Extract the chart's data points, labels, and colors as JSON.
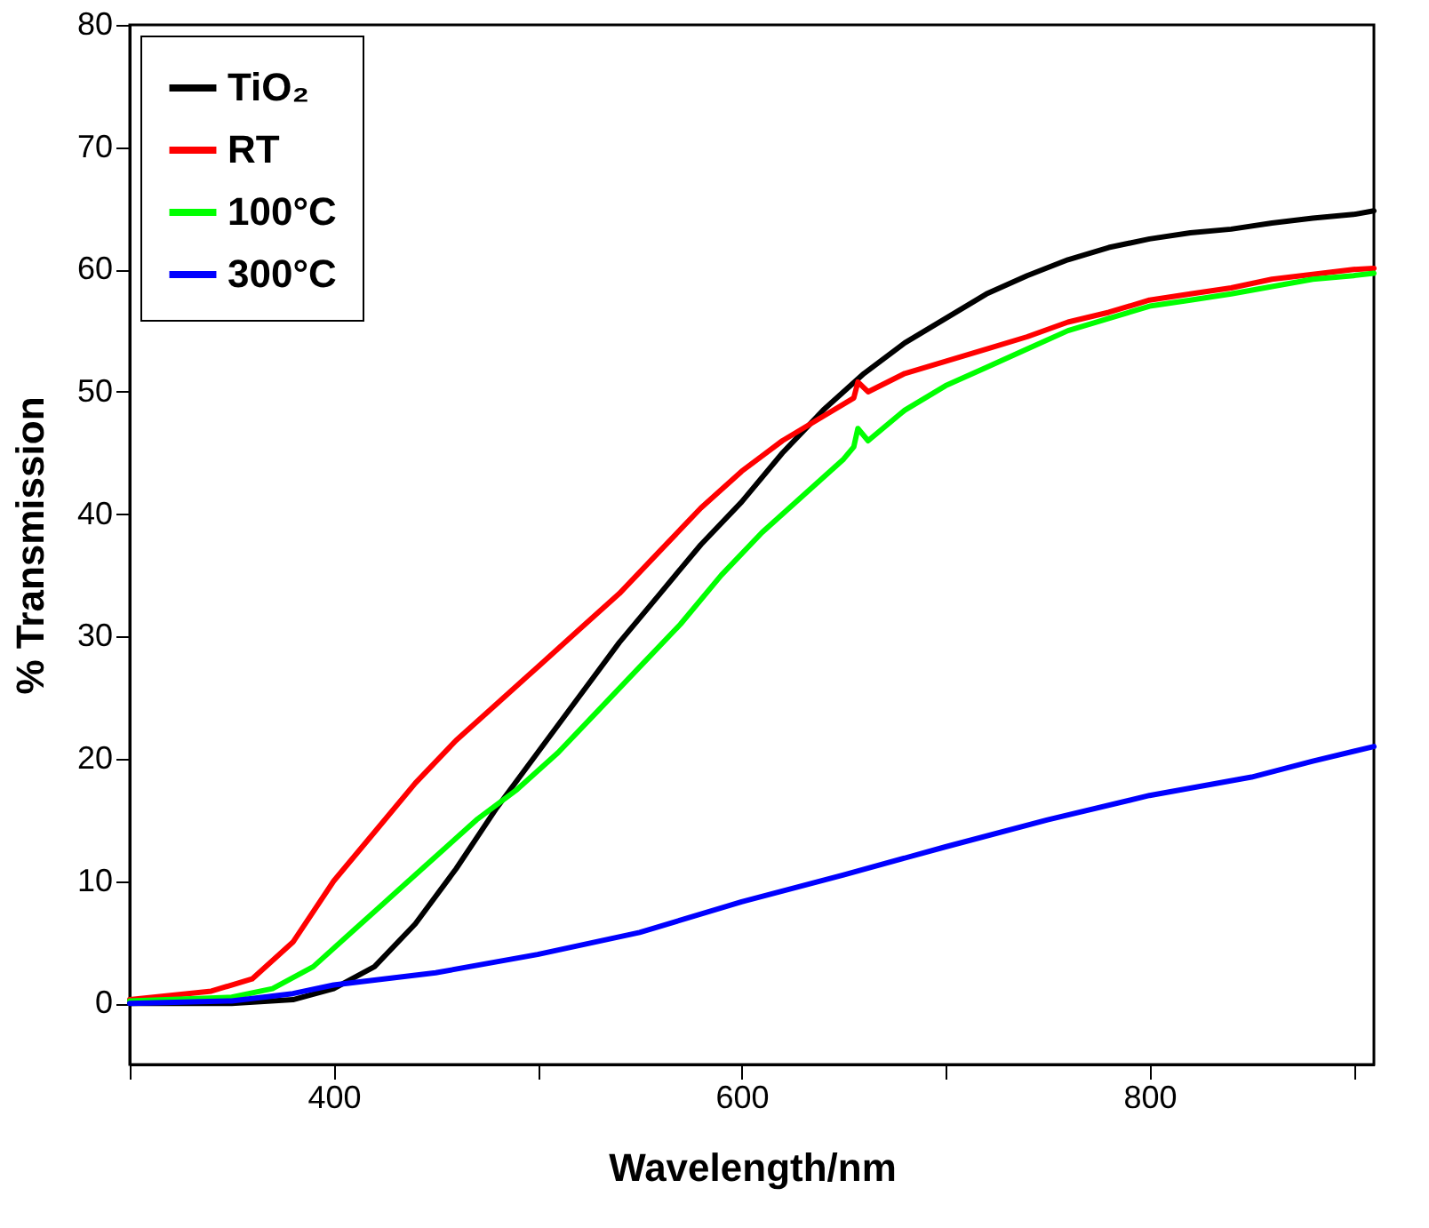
{
  "chart_data": {
    "type": "line",
    "xlabel": "Wavelength/nm",
    "ylabel": "% Transmission",
    "xlim": [
      300,
      910
    ],
    "ylim": [
      -5,
      80
    ],
    "xticks": [
      {
        "value": 300,
        "label": null
      },
      400,
      {
        "value": 500,
        "label": null
      },
      600,
      {
        "value": 700,
        "label": null
      },
      800,
      {
        "value": 900,
        "label": null
      }
    ],
    "yticks": [
      0,
      10,
      20,
      30,
      40,
      50,
      60,
      70,
      80
    ],
    "grid": false,
    "legend": "top left",
    "line_style": "solid",
    "marker": "none",
    "series": [
      {
        "name": "TiO₂",
        "color": "#000000",
        "x": [
          300,
          350,
          380,
          400,
          420,
          440,
          460,
          480,
          500,
          520,
          540,
          560,
          580,
          600,
          620,
          640,
          660,
          680,
          700,
          720,
          740,
          760,
          780,
          800,
          820,
          840,
          860,
          880,
          900,
          910
        ],
        "values": [
          0,
          0,
          0.3,
          1.2,
          3,
          6.5,
          11,
          16,
          20.5,
          25,
          29.5,
          33.5,
          37.5,
          41,
          45,
          48.5,
          51.5,
          54,
          56,
          58,
          59.5,
          60.8,
          61.8,
          62.5,
          63,
          63.3,
          63.8,
          64.2,
          64.5,
          64.8
        ]
      },
      {
        "name": "RT",
        "color": "#ff0000",
        "x": [
          300,
          340,
          360,
          380,
          400,
          420,
          440,
          460,
          480,
          500,
          520,
          540,
          560,
          580,
          600,
          620,
          640,
          655,
          657,
          662,
          680,
          700,
          720,
          740,
          760,
          780,
          800,
          820,
          840,
          860,
          880,
          900,
          910
        ],
        "values": [
          0.3,
          1,
          2,
          5,
          10,
          14,
          18,
          21.5,
          24.5,
          27.5,
          30.5,
          33.5,
          37,
          40.5,
          43.5,
          46,
          48,
          49.5,
          50.8,
          50,
          51.5,
          52.5,
          53.5,
          54.5,
          55.7,
          56.5,
          57.5,
          58,
          58.5,
          59.2,
          59.6,
          60,
          60.1
        ]
      },
      {
        "name": "100°C",
        "color": "#00ff00",
        "x": [
          300,
          350,
          370,
          390,
          410,
          430,
          450,
          470,
          490,
          510,
          530,
          550,
          570,
          590,
          610,
          630,
          650,
          655,
          657,
          662,
          680,
          700,
          720,
          740,
          760,
          780,
          800,
          820,
          840,
          860,
          880,
          900,
          910
        ],
        "values": [
          0.2,
          0.5,
          1.2,
          3,
          6,
          9,
          12,
          15,
          17.5,
          20.5,
          24,
          27.5,
          31,
          35,
          38.5,
          41.5,
          44.5,
          45.5,
          47,
          46,
          48.5,
          50.5,
          52,
          53.5,
          55,
          56,
          57,
          57.5,
          58,
          58.6,
          59.2,
          59.5,
          59.7
        ]
      },
      {
        "name": "300°C",
        "color": "#0000ff",
        "x": [
          300,
          350,
          380,
          400,
          450,
          500,
          550,
          600,
          650,
          700,
          750,
          800,
          850,
          880,
          910
        ],
        "values": [
          0,
          0.2,
          0.8,
          1.5,
          2.5,
          4,
          5.8,
          8.3,
          10.5,
          12.8,
          15,
          17,
          18.5,
          19.8,
          21
        ]
      }
    ]
  }
}
